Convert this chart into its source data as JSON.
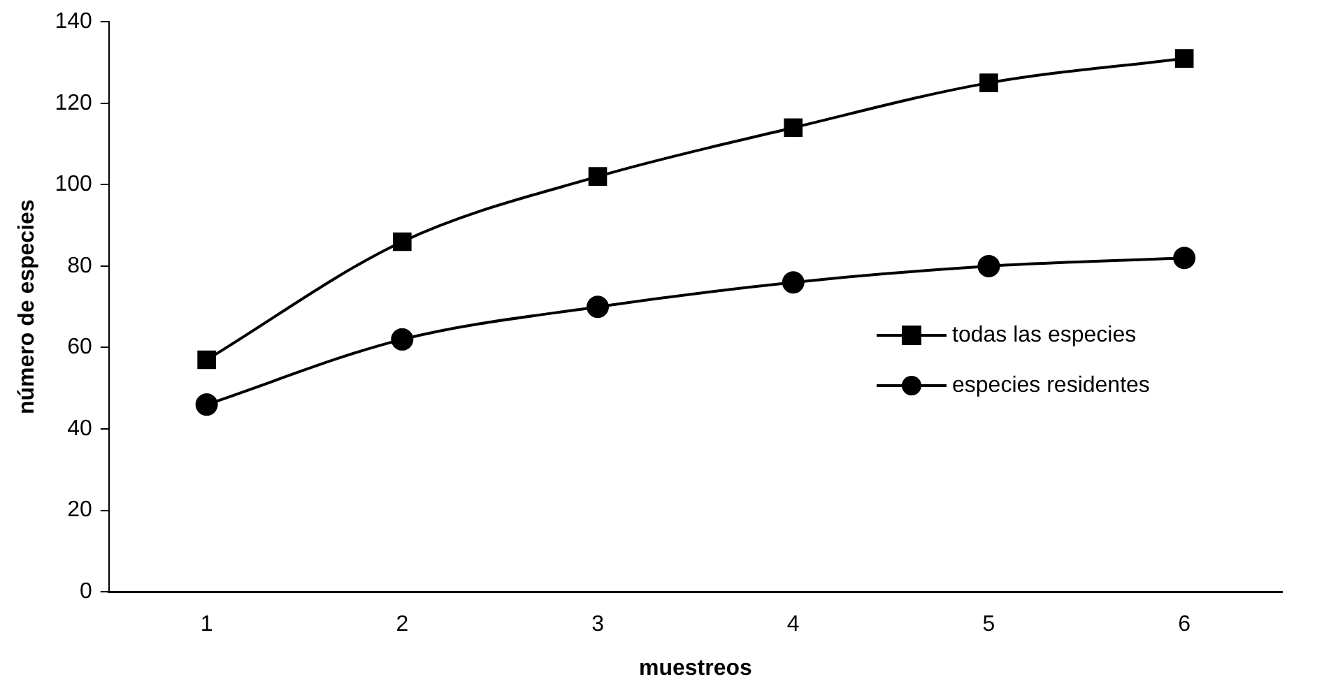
{
  "chart_data": {
    "type": "line",
    "xlabel": "muestreos",
    "ylabel": "número de especies",
    "categories": [
      "1",
      "2",
      "3",
      "4",
      "5",
      "6"
    ],
    "series": [
      {
        "name": "todas las especies",
        "color": "#000000",
        "marker": "square",
        "values": [
          57,
          86,
          102,
          114,
          125,
          131
        ]
      },
      {
        "name": "especies residentes",
        "color": "#000000",
        "marker": "circle",
        "values": [
          46,
          62,
          70,
          76,
          80,
          82
        ]
      }
    ],
    "ylim": [
      0,
      140
    ],
    "yticks": [
      0,
      20,
      40,
      60,
      80,
      100,
      120,
      140
    ],
    "grid": false,
    "legend": "right",
    "line_style": "solid"
  }
}
